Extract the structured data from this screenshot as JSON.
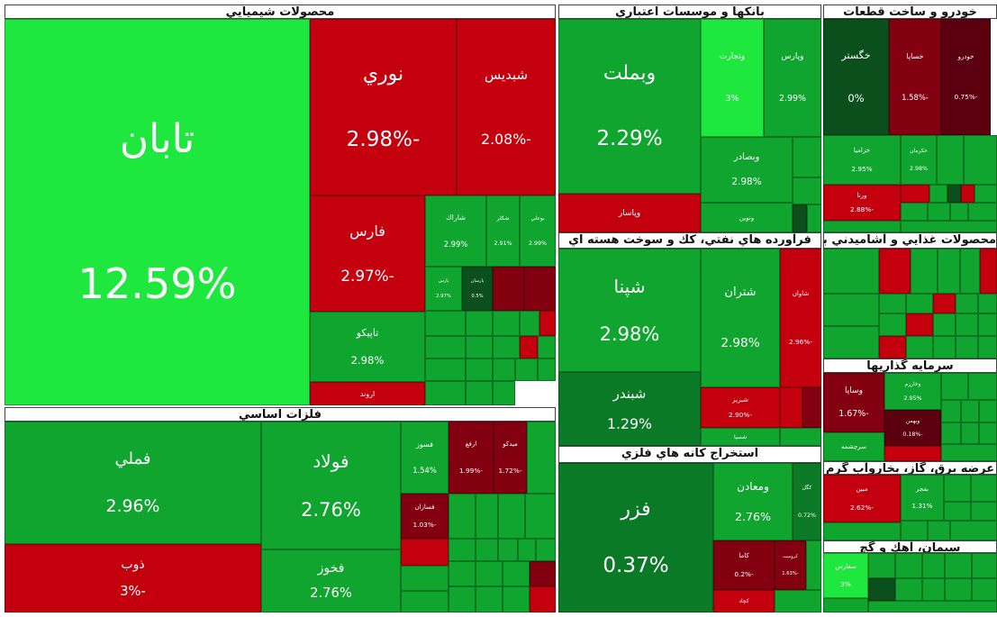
{
  "sectors": [
    {
      "title": "محصولات شيميايي",
      "tiles": [
        {
          "label": "تابان",
          "change": "12.59%"
        },
        {
          "label": "نوري",
          "change": "-2.98%"
        },
        {
          "label": "شبديس",
          "change": "-2.08%"
        },
        {
          "label": "فارس",
          "change": "-2.97%"
        },
        {
          "label": "تاپيكو",
          "change": "2.98%"
        },
        {
          "label": "اروند"
        },
        {
          "label": "شاراك",
          "change": "2.99%"
        },
        {
          "label": "شكلر",
          "change": "2.91%"
        },
        {
          "label": "بوعلي",
          "change": "2.99%"
        },
        {
          "label": "پارس",
          "change": "2.97%"
        },
        {
          "label": "پارسان",
          "change": "0.5%"
        }
      ]
    },
    {
      "title": "فلزات اساسي",
      "tiles": [
        {
          "label": "فملي",
          "change": "2.96%"
        },
        {
          "label": "ذوب",
          "change": "-3%"
        },
        {
          "label": "فولاد",
          "change": "2.76%"
        },
        {
          "label": "فخوز",
          "change": "2.76%"
        },
        {
          "label": "فسوز",
          "change": "1.54%"
        },
        {
          "label": "ارفع",
          "change": "-1.99%"
        },
        {
          "label": "ميدكو",
          "change": "-1.72%"
        },
        {
          "label": "فسازان",
          "change": "-1.03%"
        }
      ]
    },
    {
      "title": "بانكها و موسسات اعتباري",
      "tiles": [
        {
          "label": "وبملت",
          "change": "2.29%"
        },
        {
          "label": "وتجارت",
          "change": "3%"
        },
        {
          "label": "وپارس",
          "change": "2.99%"
        },
        {
          "label": "وبصادر",
          "change": "2.98%"
        },
        {
          "label": "وپاسار"
        },
        {
          "label": "ونوين"
        }
      ]
    },
    {
      "title": "خودرو و ساخت قطعات",
      "tiles": [
        {
          "label": "خگستر",
          "change": "0%"
        },
        {
          "label": "خساپا",
          "change": "-1.58%"
        },
        {
          "label": "خودرو",
          "change": "-0.75%"
        },
        {
          "label": "خزاميا",
          "change": "2.95%"
        },
        {
          "label": "خكرمان",
          "change": "2.98%"
        },
        {
          "label": "ورنا",
          "change": "-2.88%"
        }
      ]
    },
    {
      "title": "فرآورده هاي نفتي، كك و سوخت هسته اي",
      "tiles": [
        {
          "label": "شپنا",
          "change": "2.98%"
        },
        {
          "label": "شبندر",
          "change": "1.29%"
        },
        {
          "label": "شتران",
          "change": "2.98%"
        },
        {
          "label": "شاوان",
          "change": "-2.96%"
        },
        {
          "label": "شبريز",
          "change": "-2.90%"
        },
        {
          "label": "شسپا"
        }
      ]
    },
    {
      "title": "استخراج كانه هاي فلزي",
      "tiles": [
        {
          "label": "فزر",
          "change": "0.37%"
        },
        {
          "label": "ومعادن",
          "change": "2.76%"
        },
        {
          "label": "كگل",
          "change": "0.72%"
        },
        {
          "label": "كاما",
          "change": "-0.2%"
        },
        {
          "label": "كچاد"
        },
        {
          "label": "كروميت",
          "change": "-1.63%"
        }
      ]
    },
    {
      "title": "محصولات غذايي و آشاميدني به جز قند و شكر",
      "tiles": []
    },
    {
      "title": "سرمايه گذاريها",
      "tiles": [
        {
          "label": "وساپا",
          "change": "-1.67%"
        },
        {
          "label": "وخارزم",
          "change": "2.95%"
        },
        {
          "label": "وبهمن",
          "change": "-0.18%"
        },
        {
          "label": "سرچشمه"
        }
      ]
    },
    {
      "title": "عرضه برق، گاز، بخاروآب گرم",
      "tiles": [
        {
          "label": "مبين",
          "change": "-2.62%"
        },
        {
          "label": "بفجر",
          "change": "1.31%"
        }
      ]
    },
    {
      "title": "سيمان، آهك و گچ",
      "tiles": [
        {
          "label": "سفارس",
          "change": "3%"
        }
      ]
    }
  ]
}
